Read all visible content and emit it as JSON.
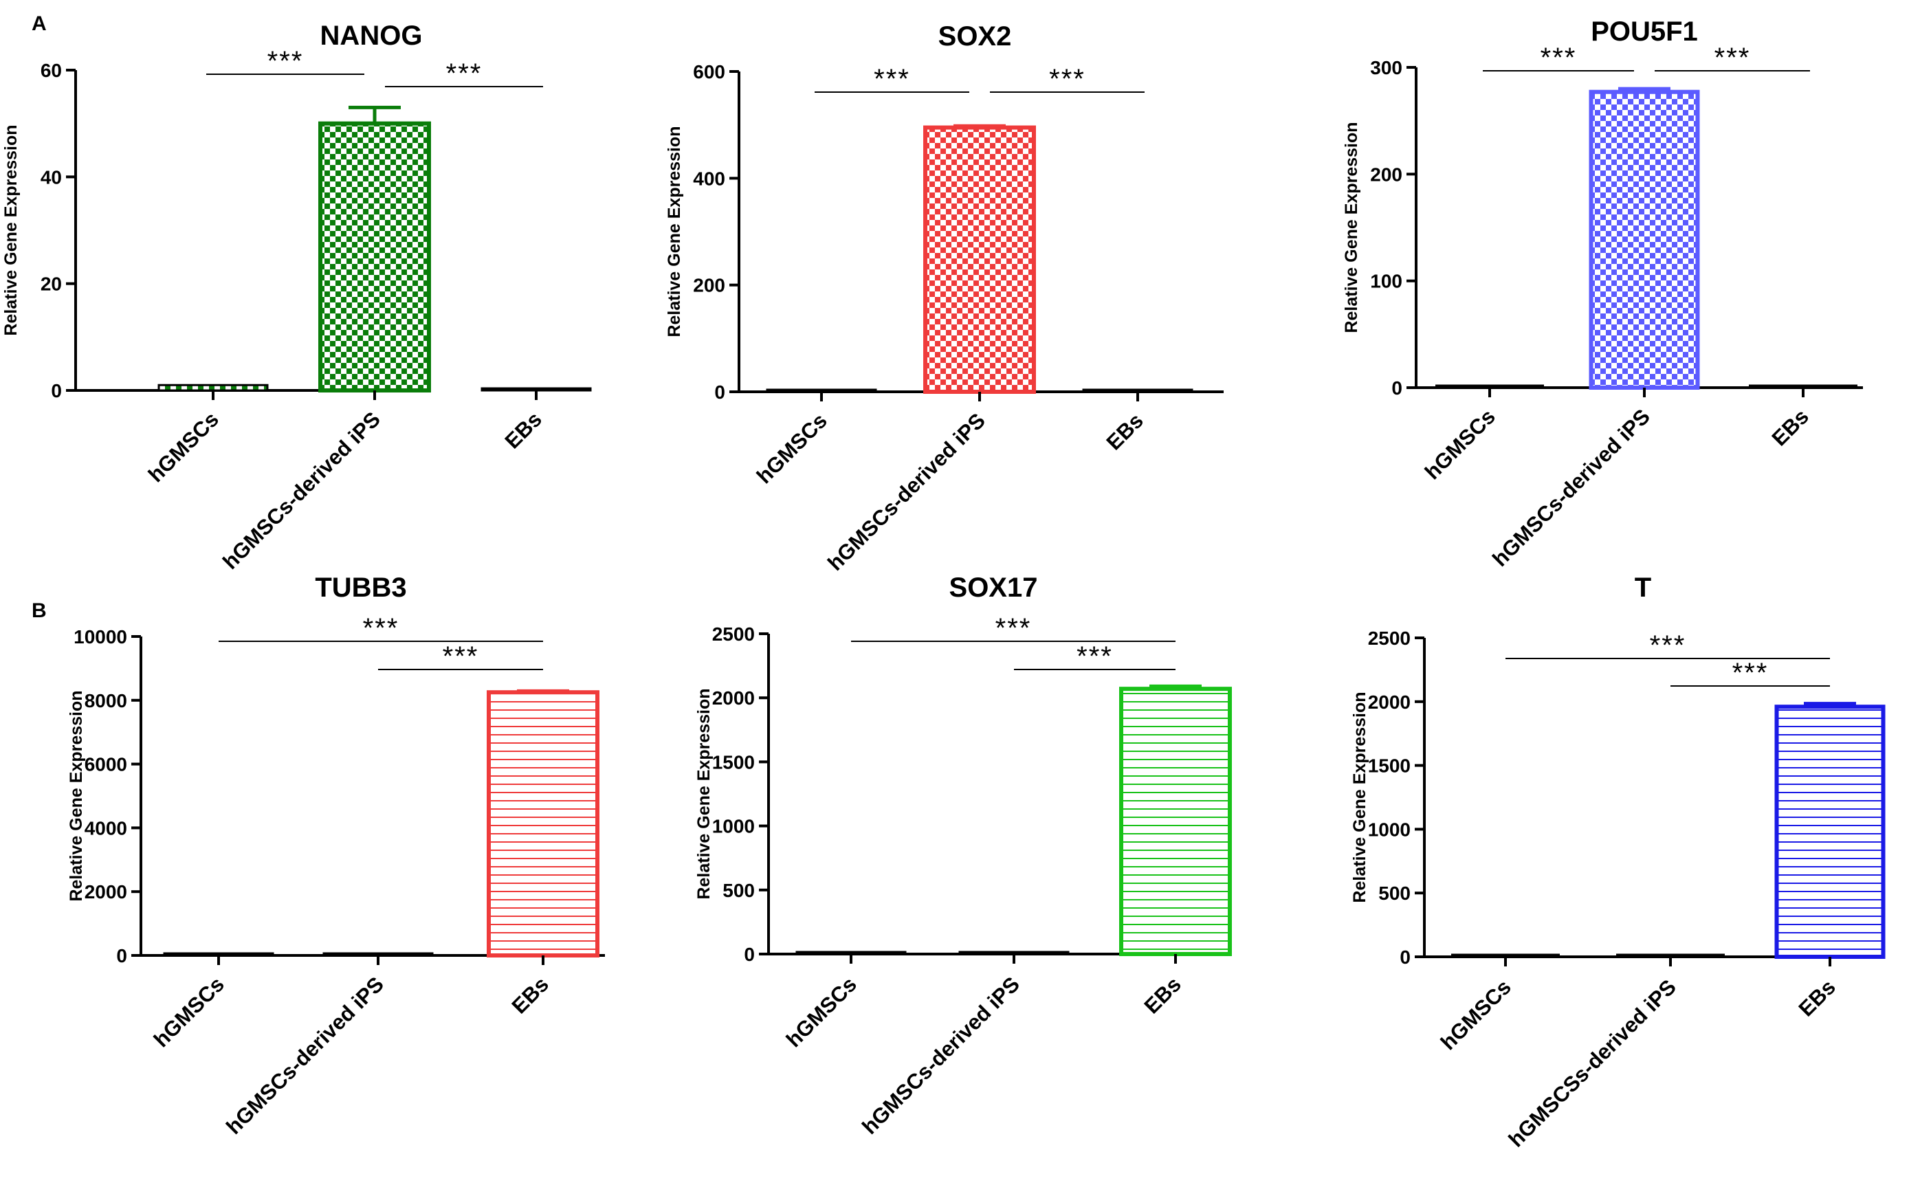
{
  "figure": {
    "panel_labels": [
      "A",
      "B"
    ]
  },
  "colors": {
    "green": "#0a7d0a",
    "red": "#ef3b3b",
    "blue": "#5b5bff",
    "bright_green": "#19c219",
    "deep_blue": "#1a1ae6",
    "axis": "#000000"
  },
  "chart_data": [
    {
      "type": "bar",
      "title": "NANOG",
      "ylabel": "Relative Gene Expression",
      "categories": [
        "hGMSCs",
        "hGMSCs-derived iPS",
        "EBs"
      ],
      "values": [
        1,
        50,
        0.3
      ],
      "errors": [
        0.3,
        3,
        0.1
      ],
      "ylim": [
        0,
        60
      ],
      "yticks": [
        "0",
        "20",
        "40",
        "60"
      ],
      "pattern": "checker",
      "color": "#0a7d0a",
      "significance": [
        {
          "from": 0,
          "to": 1,
          "label": "***"
        },
        {
          "from": 1,
          "to": 2,
          "label": "***"
        }
      ]
    },
    {
      "type": "bar",
      "title": "SOX2",
      "ylabel": "Relative Gene Expression",
      "categories": [
        "hGMSCs",
        "hGMSCs-derived iPS",
        "EBs"
      ],
      "values": [
        1,
        495,
        0.5
      ],
      "errors": [
        0.5,
        3,
        0.2
      ],
      "ylim": [
        0,
        600
      ],
      "yticks": [
        "0",
        "200",
        "400",
        "600"
      ],
      "pattern": "checker",
      "color": "#ef3b3b",
      "significance": [
        {
          "from": 0,
          "to": 1,
          "label": "***"
        },
        {
          "from": 1,
          "to": 2,
          "label": "***"
        }
      ]
    },
    {
      "type": "bar",
      "title": "POU5F1",
      "ylabel": "Relative Gene Expression",
      "categories": [
        "hGMSCs",
        "hGMSCs-derived iPS",
        "EBs"
      ],
      "values": [
        1,
        277,
        0.3
      ],
      "errors": [
        0.3,
        3,
        0.1
      ],
      "ylim": [
        0,
        300
      ],
      "yticks": [
        "0",
        "100",
        "200",
        "300"
      ],
      "pattern": "checker",
      "color": "#5b5bff",
      "significance": [
        {
          "from": 0,
          "to": 1,
          "label": "***"
        },
        {
          "from": 1,
          "to": 2,
          "label": "***"
        }
      ]
    },
    {
      "type": "bar",
      "title": "TUBB3",
      "ylabel": "Relative Gene Expression",
      "categories": [
        "hGMSCs",
        "hGMSCs-derived iPS",
        "EBs"
      ],
      "values": [
        0,
        0,
        8250
      ],
      "errors": [
        0,
        0,
        40
      ],
      "ylim": [
        0,
        10000
      ],
      "yticks": [
        "0",
        "2000",
        "4000",
        "6000",
        "8000",
        "10000"
      ],
      "pattern": "hlines",
      "color": "#ef3b3b",
      "significance": [
        {
          "from": 0,
          "to": 2,
          "label": "***"
        },
        {
          "from": 1,
          "to": 2,
          "label": "***"
        }
      ]
    },
    {
      "type": "bar",
      "title": "SOX17",
      "ylabel": "Relative Gene Expression",
      "categories": [
        "hGMSCs",
        "hGMSCs-derived iPS",
        "EBs"
      ],
      "values": [
        0,
        0,
        2070
      ],
      "errors": [
        0,
        0,
        20
      ],
      "ylim": [
        0,
        2500
      ],
      "yticks": [
        "0",
        "500",
        "1000",
        "1500",
        "2000",
        "2500"
      ],
      "pattern": "hlines",
      "color": "#19c219",
      "significance": [
        {
          "from": 0,
          "to": 2,
          "label": "***"
        },
        {
          "from": 1,
          "to": 2,
          "label": "***"
        }
      ]
    },
    {
      "type": "bar",
      "title": "T",
      "ylabel": "Relative Gene Expression",
      "categories": [
        "hGMSCs",
        "hGMSCSs-derived iPS",
        "EBs"
      ],
      "values": [
        0,
        0,
        1960
      ],
      "errors": [
        0,
        0,
        25
      ],
      "ylim": [
        0,
        2500
      ],
      "yticks": [
        "0",
        "500",
        "1000",
        "1500",
        "2000",
        "2500"
      ],
      "pattern": "hlines",
      "color": "#1a1ae6",
      "significance": [
        {
          "from": 0,
          "to": 2,
          "label": "***"
        },
        {
          "from": 1,
          "to": 2,
          "label": "***"
        }
      ]
    }
  ]
}
